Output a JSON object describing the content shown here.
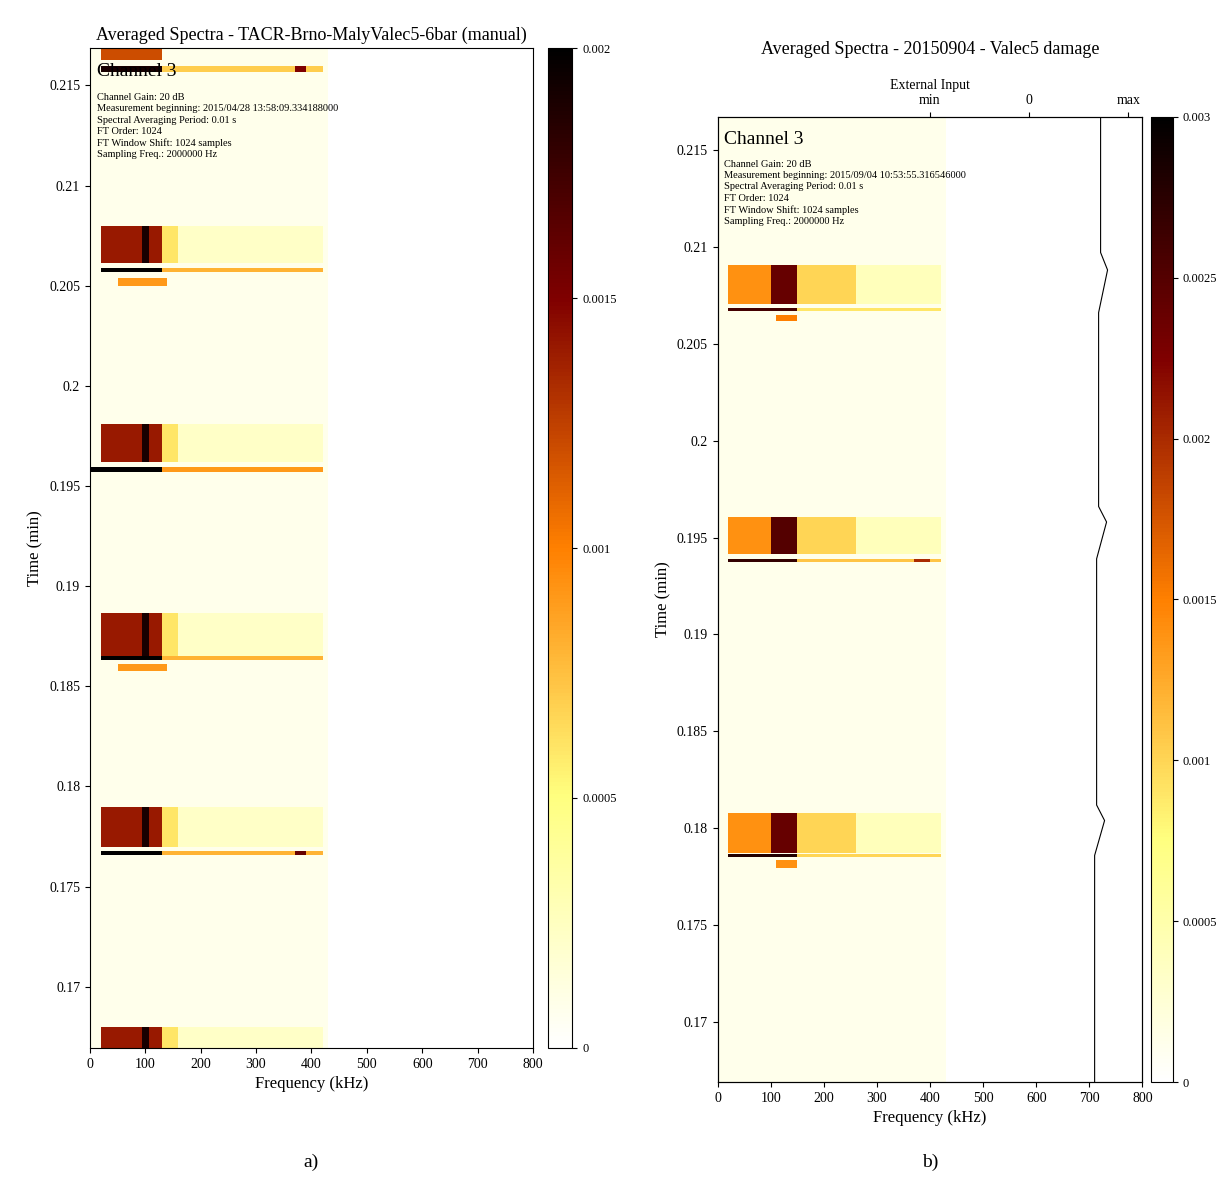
{
  "chart_data": [
    {
      "type": "heatmap",
      "label": "a)",
      "title": "Averaged Spectra - TACR-Brno-MalyValec5-6bar (manual)",
      "info": {
        "heading": "Channel 3",
        "lines": [
          "Channel Gain: 20 dB",
          "Measurement beginning: 2015/04/28 13:58:09.334188000",
          "Spectral Averaging Period: 0.01 s",
          "FT Order: 1024",
          "FT Window Shift: 1024 samples",
          "Sampling Freq.: 2000000 Hz"
        ]
      },
      "xlabel": "Frequency (kHz)",
      "ylabel": "Time (min)",
      "xlim": [
        0,
        800
      ],
      "xticks": [
        0,
        100,
        200,
        300,
        400,
        500,
        600,
        700,
        800
      ],
      "ylim": [
        0.16695,
        0.21685
      ],
      "yticks": [
        0.17,
        0.175,
        0.18,
        0.185,
        0.19,
        0.195,
        0.2,
        0.205,
        0.21,
        0.215
      ],
      "colorbar": {
        "range": [
          0,
          0.002
        ],
        "ticks": [
          0,
          0.0005,
          0.001,
          0.0015,
          0.002
        ]
      },
      "cells": [
        {
          "t": [
            0.16695,
            0.21685
          ],
          "f": [
            0,
            430
          ],
          "value": 8e-05
        },
        {
          "t": [
            0.2163,
            0.21685
          ],
          "f": [
            20,
            130
          ],
          "value": 0.0012
        },
        {
          "t": [
            0.2157,
            0.216
          ],
          "f": [
            20,
            130
          ],
          "value": 0.0019
        },
        {
          "t": [
            0.2157,
            0.216
          ],
          "f": [
            130,
            420
          ],
          "value": 0.0007
        },
        {
          "t": [
            0.2157,
            0.216
          ],
          "f": [
            370,
            390
          ],
          "value": 0.0015
        },
        {
          "t": [
            0.20615,
            0.208
          ],
          "f": [
            20,
            130
          ],
          "value": 0.0014
        },
        {
          "t": [
            0.20615,
            0.208
          ],
          "f": [
            130,
            160
          ],
          "value": 0.0006
        },
        {
          "t": [
            0.20615,
            0.208
          ],
          "f": [
            160,
            420
          ],
          "value": 0.00022
        },
        {
          "t": [
            0.20615,
            0.208
          ],
          "f": [
            95,
            105
          ],
          "value": 0.0019
        },
        {
          "t": [
            0.2057,
            0.2059
          ],
          "f": [
            20,
            130
          ],
          "value": 0.002
        },
        {
          "t": [
            0.2057,
            0.2059
          ],
          "f": [
            130,
            420
          ],
          "value": 0.0008
        },
        {
          "t": [
            0.205,
            0.2054
          ],
          "f": [
            50,
            140
          ],
          "value": 0.0009
        },
        {
          "t": [
            0.1962,
            0.1981
          ],
          "f": [
            20,
            130
          ],
          "value": 0.0014
        },
        {
          "t": [
            0.1962,
            0.1981
          ],
          "f": [
            130,
            160
          ],
          "value": 0.0006
        },
        {
          "t": [
            0.1962,
            0.1981
          ],
          "f": [
            160,
            420
          ],
          "value": 0.00022
        },
        {
          "t": [
            0.1962,
            0.1981
          ],
          "f": [
            95,
            105
          ],
          "value": 0.0019
        },
        {
          "t": [
            0.1957,
            0.19595
          ],
          "f": [
            0,
            130
          ],
          "value": 0.002
        },
        {
          "t": [
            0.1957,
            0.19595
          ],
          "f": [
            130,
            420
          ],
          "value": 0.0009
        },
        {
          "t": [
            0.1865,
            0.18865
          ],
          "f": [
            20,
            130
          ],
          "value": 0.0014
        },
        {
          "t": [
            0.1865,
            0.18865
          ],
          "f": [
            130,
            160
          ],
          "value": 0.0006
        },
        {
          "t": [
            0.1865,
            0.18865
          ],
          "f": [
            160,
            420
          ],
          "value": 0.00022
        },
        {
          "t": [
            0.1865,
            0.18865
          ],
          "f": [
            95,
            105
          ],
          "value": 0.0019
        },
        {
          "t": [
            0.1863,
            0.1865
          ],
          "f": [
            20,
            130
          ],
          "value": 0.002
        },
        {
          "t": [
            0.1863,
            0.1865
          ],
          "f": [
            130,
            420
          ],
          "value": 0.0008
        },
        {
          "t": [
            0.18575,
            0.1861
          ],
          "f": [
            50,
            140
          ],
          "value": 0.0009
        },
        {
          "t": [
            0.177,
            0.179
          ],
          "f": [
            20,
            130
          ],
          "value": 0.0014
        },
        {
          "t": [
            0.177,
            0.179
          ],
          "f": [
            130,
            160
          ],
          "value": 0.0006
        },
        {
          "t": [
            0.177,
            0.179
          ],
          "f": [
            160,
            420
          ],
          "value": 0.00022
        },
        {
          "t": [
            0.177,
            0.179
          ],
          "f": [
            95,
            105
          ],
          "value": 0.0019
        },
        {
          "t": [
            0.17655,
            0.1768
          ],
          "f": [
            20,
            130
          ],
          "value": 0.002
        },
        {
          "t": [
            0.17655,
            0.1768
          ],
          "f": [
            130,
            420
          ],
          "value": 0.0008
        },
        {
          "t": [
            0.17655,
            0.1768
          ],
          "f": [
            370,
            390
          ],
          "value": 0.0016
        },
        {
          "t": [
            0.16695,
            0.168
          ],
          "f": [
            20,
            130
          ],
          "value": 0.0014
        },
        {
          "t": [
            0.16695,
            0.168
          ],
          "f": [
            130,
            160
          ],
          "value": 0.0006
        },
        {
          "t": [
            0.16695,
            0.168
          ],
          "f": [
            160,
            420
          ],
          "value": 0.00022
        },
        {
          "t": [
            0.16695,
            0.168
          ],
          "f": [
            95,
            105
          ],
          "value": 0.0019
        }
      ]
    },
    {
      "type": "heatmap",
      "label": "b)",
      "title": "Averaged Spectra - 20150904 - Valec5 damage",
      "info": {
        "heading": "Channel 3",
        "lines": [
          "Channel Gain: 20 dB",
          "Measurement beginning: 2015/09/04 10:53:55.316546000",
          "Spectral Averaging Period: 0.01 s",
          "FT Order: 1024",
          "FT Window Shift: 1024 samples",
          "Sampling Freq.: 2000000 Hz"
        ]
      },
      "xlabel": "Frequency (kHz)",
      "ylabel": "Time (min)",
      "xlim": [
        0,
        800
      ],
      "xticks": [
        0,
        100,
        200,
        300,
        400,
        500,
        600,
        700,
        800
      ],
      "ylim": [
        0.16691,
        0.2167
      ],
      "yticks": [
        0.17,
        0.175,
        0.18,
        0.185,
        0.19,
        0.195,
        0.2,
        0.205,
        0.21,
        0.215
      ],
      "colorbar": {
        "range": [
          0,
          0.003
        ],
        "ticks": [
          0,
          0.0005,
          0.001,
          0.0015,
          0.002,
          0.0025,
          0.003
        ]
      },
      "external_input": {
        "label": "External Input",
        "x2lim": [
          -3.13,
          1.14
        ],
        "x2ticks": [
          {
            "value": -1,
            "label": "min"
          },
          0,
          {
            "value": 1,
            "label": "max"
          }
        ],
        "t": [
          0.16691,
          0.1786,
          0.1804,
          0.1812,
          0.1939,
          0.1958,
          0.1966,
          0.2066,
          0.2088,
          0.2097,
          0.2167
        ],
        "values": [
          0.66,
          0.66,
          0.76,
          0.68,
          0.68,
          0.78,
          0.7,
          0.7,
          0.79,
          0.72,
          0.72
        ]
      },
      "cells": [
        {
          "t": [
            0.16691,
            0.2167
          ],
          "f": [
            0,
            430
          ],
          "value": 0.00012
        },
        {
          "t": [
            0.20703,
            0.20908
          ],
          "f": [
            20,
            100
          ],
          "value": 0.0014
        },
        {
          "t": [
            0.20703,
            0.20908
          ],
          "f": [
            100,
            150
          ],
          "value": 0.0024
        },
        {
          "t": [
            0.20703,
            0.20908
          ],
          "f": [
            150,
            260
          ],
          "value": 0.001
        },
        {
          "t": [
            0.20703,
            0.20908
          ],
          "f": [
            260,
            420
          ],
          "value": 0.0004
        },
        {
          "t": [
            0.2067,
            0.20685
          ],
          "f": [
            20,
            150
          ],
          "value": 0.0026
        },
        {
          "t": [
            0.2067,
            0.20685
          ],
          "f": [
            150,
            420
          ],
          "value": 0.0009
        },
        {
          "t": [
            0.20615,
            0.20646
          ],
          "f": [
            110,
            150
          ],
          "value": 0.0015
        },
        {
          "t": [
            0.19417,
            0.19607
          ],
          "f": [
            20,
            100
          ],
          "value": 0.0014
        },
        {
          "t": [
            0.19417,
            0.19607
          ],
          "f": [
            100,
            150
          ],
          "value": 0.0025
        },
        {
          "t": [
            0.19417,
            0.19607
          ],
          "f": [
            150,
            260
          ],
          "value": 0.001
        },
        {
          "t": [
            0.19417,
            0.19607
          ],
          "f": [
            260,
            420
          ],
          "value": 0.0004
        },
        {
          "t": [
            0.19372,
            0.1939
          ],
          "f": [
            20,
            150
          ],
          "value": 0.0027
        },
        {
          "t": [
            0.19372,
            0.1939
          ],
          "f": [
            150,
            420
          ],
          "value": 0.0011
        },
        {
          "t": [
            0.19372,
            0.1939
          ],
          "f": [
            370,
            400
          ],
          "value": 0.002
        },
        {
          "t": [
            0.17873,
            0.18079
          ],
          "f": [
            20,
            100
          ],
          "value": 0.0014
        },
        {
          "t": [
            0.17873,
            0.18079
          ],
          "f": [
            100,
            150
          ],
          "value": 0.0024
        },
        {
          "t": [
            0.17873,
            0.18079
          ],
          "f": [
            150,
            260
          ],
          "value": 0.001
        },
        {
          "t": [
            0.17873,
            0.18079
          ],
          "f": [
            260,
            420
          ],
          "value": 0.0004
        },
        {
          "t": [
            0.1785,
            0.17866
          ],
          "f": [
            20,
            150
          ],
          "value": 0.0028
        },
        {
          "t": [
            0.1785,
            0.17866
          ],
          "f": [
            150,
            420
          ],
          "value": 0.001
        },
        {
          "t": [
            0.17796,
            0.17837
          ],
          "f": [
            110,
            150
          ],
          "value": 0.0014
        }
      ]
    }
  ]
}
